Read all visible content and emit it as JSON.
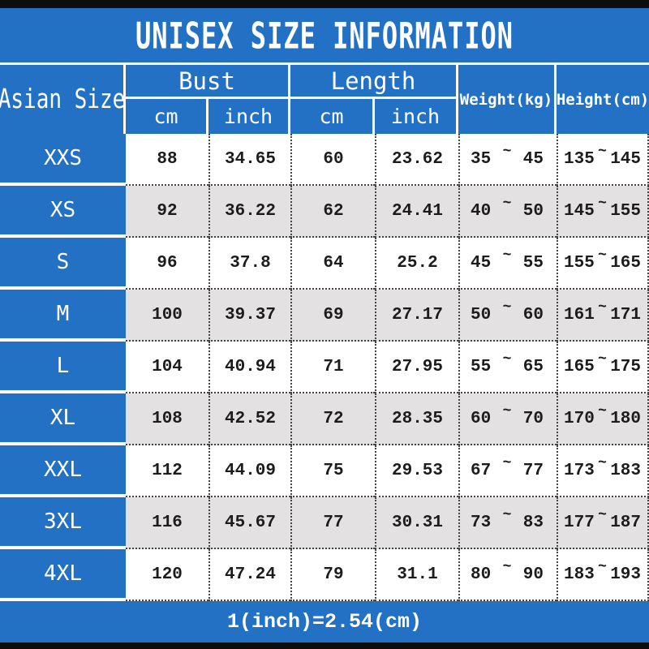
{
  "title": "UNISEX SIZE INFORMATION",
  "footer_note": "1(inch)=2.54(cm)",
  "colors": {
    "blue": "#2371c4",
    "bar": "#0d0d0d",
    "alt_row": "#e3e1e2",
    "header_text": "#ffffff",
    "data_text": "#1c1c1c"
  },
  "table": {
    "corner_header": "Asian Size",
    "groups": [
      {
        "label": "Bust",
        "sub": [
          "cm",
          "inch"
        ]
      },
      {
        "label": "Length",
        "sub": [
          "cm",
          "inch"
        ]
      }
    ],
    "single_headers": [
      "Weight(kg)",
      "Height(cm)"
    ],
    "tilde": "~",
    "rows": [
      {
        "size": "XXS",
        "bust_cm": "88",
        "bust_inch": "34.65",
        "length_cm": "60",
        "length_inch": "23.62",
        "weight_min": "35",
        "weight_max": "45",
        "height_min": "135",
        "height_max": "145"
      },
      {
        "size": "XS",
        "bust_cm": "92",
        "bust_inch": "36.22",
        "length_cm": "62",
        "length_inch": "24.41",
        "weight_min": "40",
        "weight_max": "50",
        "height_min": "145",
        "height_max": "155"
      },
      {
        "size": "S",
        "bust_cm": "96",
        "bust_inch": "37.8",
        "length_cm": "64",
        "length_inch": "25.2",
        "weight_min": "45",
        "weight_max": "55",
        "height_min": "155",
        "height_max": "165"
      },
      {
        "size": "M",
        "bust_cm": "100",
        "bust_inch": "39.37",
        "length_cm": "69",
        "length_inch": "27.17",
        "weight_min": "50",
        "weight_max": "60",
        "height_min": "161",
        "height_max": "171"
      },
      {
        "size": "L",
        "bust_cm": "104",
        "bust_inch": "40.94",
        "length_cm": "71",
        "length_inch": "27.95",
        "weight_min": "55",
        "weight_max": "65",
        "height_min": "165",
        "height_max": "175"
      },
      {
        "size": "XL",
        "bust_cm": "108",
        "bust_inch": "42.52",
        "length_cm": "72",
        "length_inch": "28.35",
        "weight_min": "60",
        "weight_max": "70",
        "height_min": "170",
        "height_max": "180"
      },
      {
        "size": "XXL",
        "bust_cm": "112",
        "bust_inch": "44.09",
        "length_cm": "75",
        "length_inch": "29.53",
        "weight_min": "67",
        "weight_max": "77",
        "height_min": "173",
        "height_max": "183"
      },
      {
        "size": "3XL",
        "bust_cm": "116",
        "bust_inch": "45.67",
        "length_cm": "77",
        "length_inch": "30.31",
        "weight_min": "73",
        "weight_max": "83",
        "height_min": "177",
        "height_max": "187"
      },
      {
        "size": "4XL",
        "bust_cm": "120",
        "bust_inch": "47.24",
        "length_cm": "79",
        "length_inch": "31.1",
        "weight_min": "80",
        "weight_max": "90",
        "height_min": "183",
        "height_max": "193"
      }
    ]
  },
  "chart_data": {
    "type": "table",
    "title": "UNISEX SIZE INFORMATION",
    "columns": [
      "Asian Size",
      "Bust (cm)",
      "Bust (inch)",
      "Length (cm)",
      "Length (inch)",
      "Weight (kg)",
      "Height (cm)"
    ],
    "rows": [
      [
        "XXS",
        "88",
        "34.65",
        "60",
        "23.62",
        "35~45",
        "135~145"
      ],
      [
        "XS",
        "92",
        "36.22",
        "62",
        "24.41",
        "40~50",
        "145~155"
      ],
      [
        "S",
        "96",
        "37.8",
        "64",
        "25.2",
        "45~55",
        "155~165"
      ],
      [
        "M",
        "100",
        "39.37",
        "69",
        "27.17",
        "50~60",
        "161~171"
      ],
      [
        "L",
        "104",
        "40.94",
        "71",
        "27.95",
        "55~65",
        "165~175"
      ],
      [
        "XL",
        "108",
        "42.52",
        "72",
        "28.35",
        "60~70",
        "170~180"
      ],
      [
        "XXL",
        "112",
        "44.09",
        "75",
        "29.53",
        "67~77",
        "173~183"
      ],
      [
        "3XL",
        "116",
        "45.67",
        "77",
        "30.31",
        "73~83",
        "177~187"
      ],
      [
        "4XL",
        "120",
        "47.24",
        "79",
        "31.1",
        "80~90",
        "183~193"
      ]
    ],
    "note": "1(inch)=2.54(cm)"
  }
}
